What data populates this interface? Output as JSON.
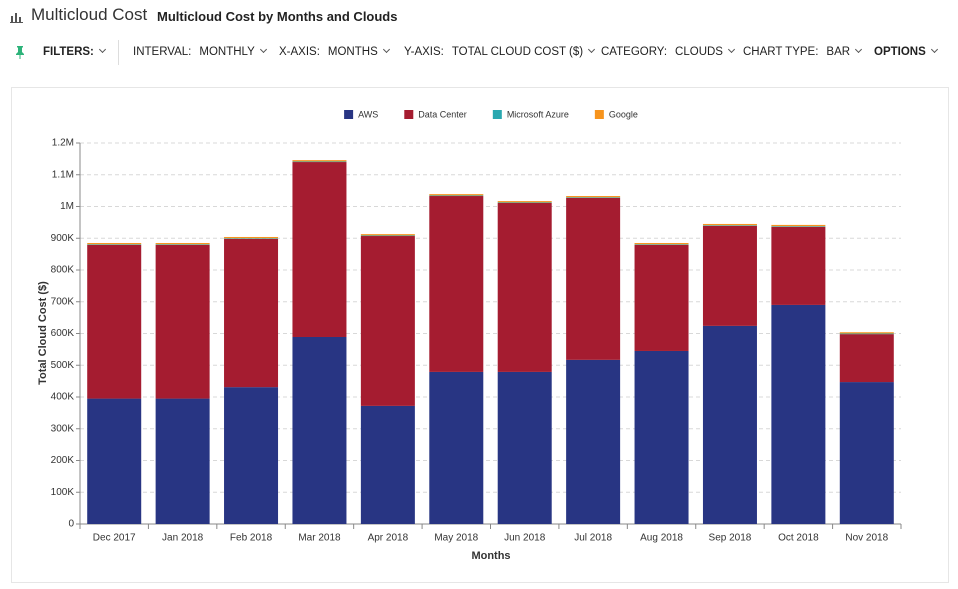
{
  "header": {
    "title": "Multicloud Cost",
    "subtitle": "Multicloud Cost by Months and Clouds"
  },
  "toolbar": {
    "filters": "FILTERS:",
    "items": [
      {
        "label": "INTERVAL:",
        "value": "MONTHLY"
      },
      {
        "label": "X-AXIS:",
        "value": "MONTHS"
      },
      {
        "label": "Y-AXIS:",
        "value": "TOTAL CLOUD COST ($)"
      },
      {
        "label": "CATEGORY:",
        "value": "CLOUDS"
      },
      {
        "label": "CHART TYPE:",
        "value": "BAR"
      }
    ],
    "options": "OPTIONS"
  },
  "chart_data": {
    "type": "bar",
    "stacked": true,
    "grid": true,
    "x_label": "Months",
    "y_label": "Total Cloud Cost ($)",
    "categories": [
      "Dec 2017",
      "Jan 2018",
      "Feb 2018",
      "Mar 2018",
      "Apr 2018",
      "May 2018",
      "Jun 2018",
      "Jul 2018",
      "Aug 2018",
      "Sep 2018",
      "Oct 2018",
      "Nov 2018"
    ],
    "series": [
      {
        "name": "AWS",
        "color": "#283583",
        "values": [
          395000,
          395000,
          431000,
          589000,
          372000,
          479000,
          479000,
          517000,
          545000,
          624000,
          690000,
          447000
        ]
      },
      {
        "name": "Data Center",
        "color": "#a51c30",
        "values": [
          484000,
          484000,
          467000,
          551000,
          535000,
          554000,
          532000,
          510000,
          334000,
          315000,
          246000,
          151000
        ]
      },
      {
        "name": "Microsoft Azure",
        "color": "#2aa8b0",
        "values": [
          2000,
          2000,
          2000,
          2000,
          2000,
          2000,
          2000,
          2000,
          2000,
          2000,
          2000,
          2000
        ]
      },
      {
        "name": "Google",
        "color": "#f7941d",
        "values": [
          4000,
          4000,
          4000,
          4000,
          4000,
          4000,
          4000,
          4000,
          4000,
          4000,
          4000,
          4000
        ]
      }
    ],
    "ylim": [
      0,
      1200000
    ],
    "yticks": [
      0,
      {
        "value": 100000,
        "label": "100K"
      },
      {
        "value": 200000,
        "label": "200K"
      },
      {
        "value": 300000,
        "label": "300K"
      },
      {
        "value": 400000,
        "label": "400K"
      },
      {
        "value": 500000,
        "label": "500K"
      },
      {
        "value": 600000,
        "label": "600K"
      },
      {
        "value": 700000,
        "label": "700K"
      },
      {
        "value": 800000,
        "label": "800K"
      },
      {
        "value": 900000,
        "label": "900K"
      },
      {
        "value": 1000000,
        "label": "1M"
      },
      {
        "value": 1100000,
        "label": "1.1M"
      },
      {
        "value": 1200000,
        "label": "1.2M"
      }
    ]
  }
}
